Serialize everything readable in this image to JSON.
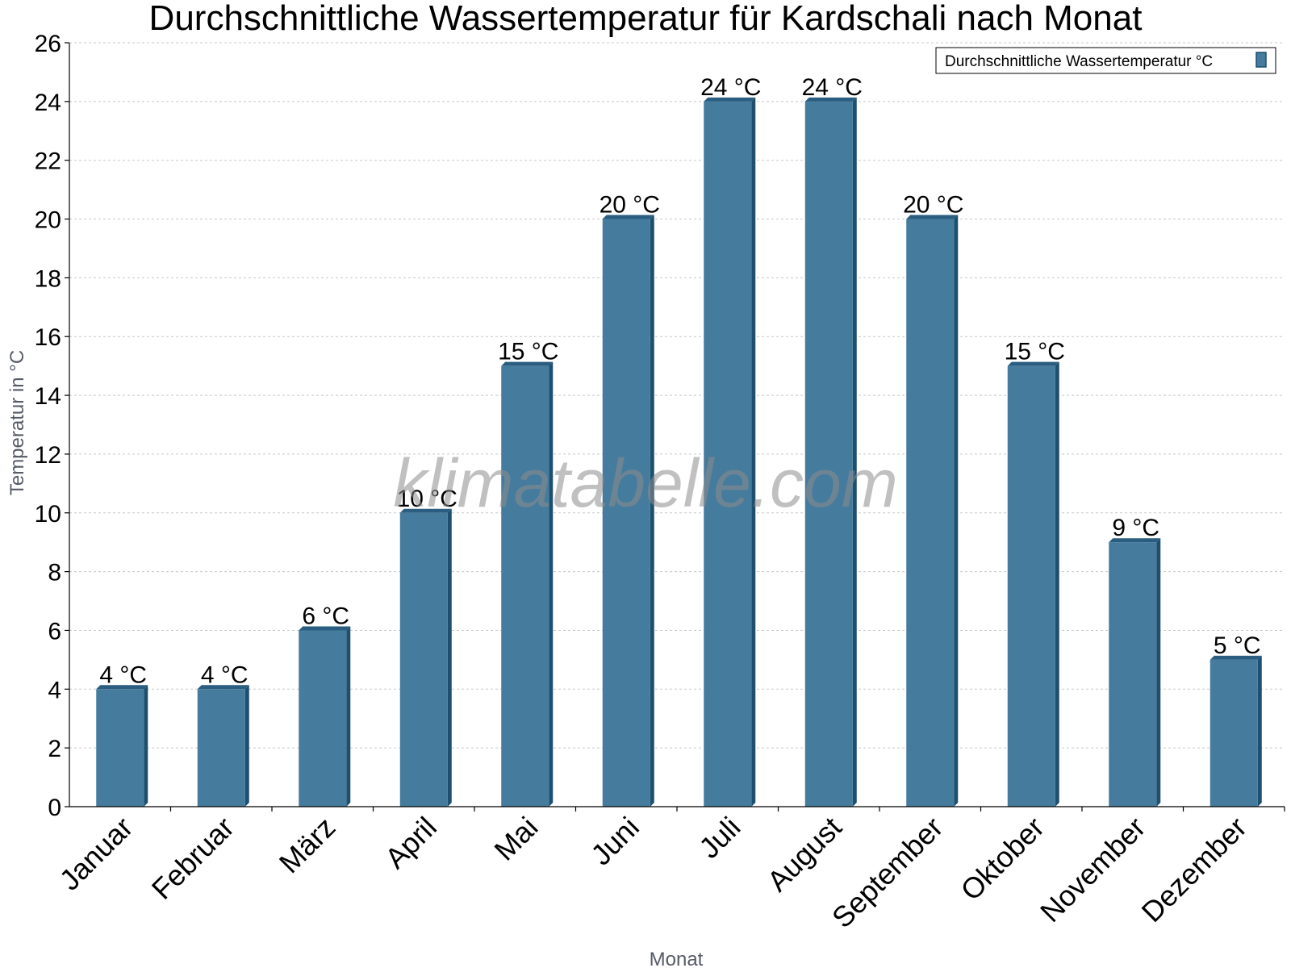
{
  "chart_data": {
    "type": "bar",
    "title": "Durchschnittliche Wassertemperatur für Kardschali nach Monat",
    "xlabel": "Monat",
    "ylabel": "Temperatur in °C",
    "categories": [
      "Januar",
      "Februar",
      "März",
      "April",
      "Mai",
      "Juni",
      "Juli",
      "August",
      "September",
      "Oktober",
      "November",
      "Dezember"
    ],
    "series": [
      {
        "name": "Durchschnittliche Wassertemperatur °C",
        "values": [
          4,
          4,
          6,
          10,
          15,
          20,
          24,
          24,
          20,
          15,
          9,
          5
        ],
        "labels": [
          "4 °C",
          "4 °C",
          "6 °C",
          "10 °C",
          "15 °C",
          "20 °C",
          "24 °C",
          "24 °C",
          "20 °C",
          "15 °C",
          "9 °C",
          "5 °C"
        ]
      }
    ],
    "ylim": [
      0,
      26
    ],
    "yticks": [
      "0",
      "2",
      "4",
      "6",
      "8",
      "10",
      "12",
      "14",
      "16",
      "18",
      "20",
      "22",
      "24",
      "26"
    ],
    "grid": true,
    "legend_position": "top-right",
    "colors": {
      "bar": "#457b9d",
      "bar_side": "#1d4f6f",
      "bar_top": "#2a5d80"
    }
  },
  "watermark": "klimatabelle.com"
}
